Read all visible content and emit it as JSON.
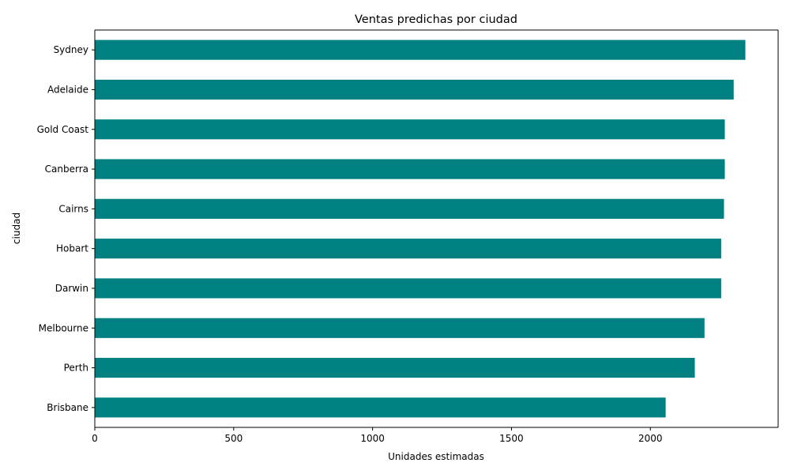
{
  "chart_data": {
    "type": "bar",
    "orientation": "horizontal",
    "title": "Ventas predichas por ciudad",
    "xlabel": "Unidades estimadas",
    "ylabel": "ciudad",
    "categories": [
      "Brisbane",
      "Perth",
      "Melbourne",
      "Darwin",
      "Hobart",
      "Cairns",
      "Canberra",
      "Gold Coast",
      "Adelaide",
      "Sydney"
    ],
    "values": [
      2055,
      2160,
      2195,
      2255,
      2255,
      2265,
      2268,
      2268,
      2300,
      2342
    ],
    "xlim": [
      0,
      2460
    ],
    "xticks": [
      0,
      500,
      1000,
      1500,
      2000
    ],
    "bar_color": "#008080",
    "grid": false,
    "legend": "none"
  }
}
